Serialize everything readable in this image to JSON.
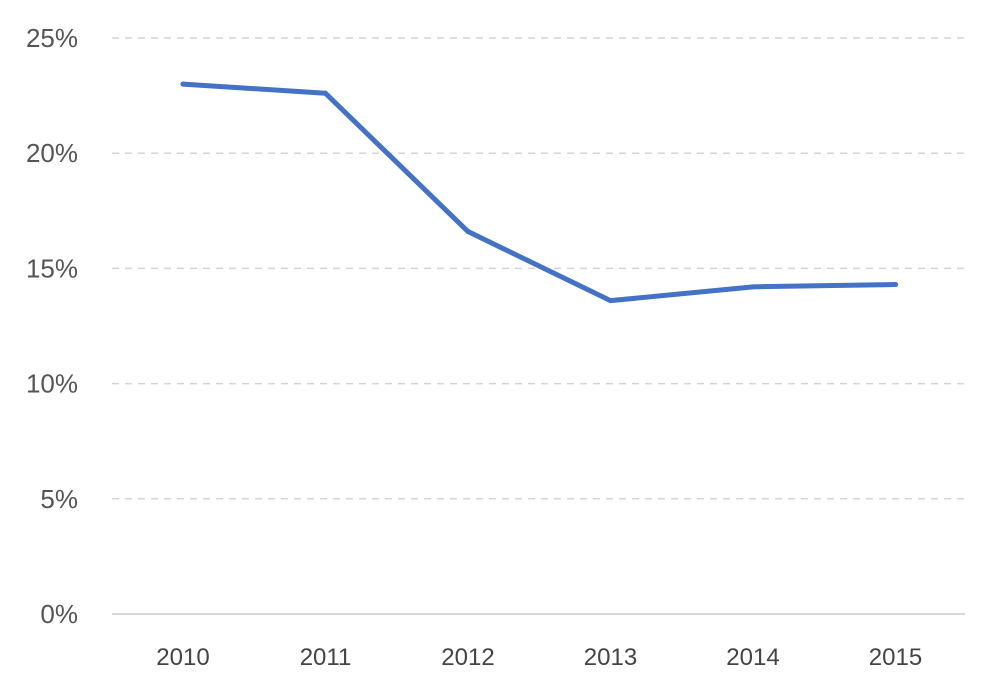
{
  "chart_data": {
    "type": "line",
    "title": "",
    "xlabel": "",
    "ylabel": "",
    "categories": [
      "2010",
      "2011",
      "2012",
      "2013",
      "2014",
      "2015"
    ],
    "series": [
      {
        "values": [
          23.0,
          22.6,
          16.6,
          13.6,
          14.2,
          14.3
        ],
        "color": "#4472C4"
      }
    ],
    "ylim": [
      0,
      25
    ],
    "yticks": [
      0,
      5,
      10,
      15,
      20,
      25
    ],
    "ytick_labels": [
      "0%",
      "5%",
      "10%",
      "15%",
      "20%",
      "25%"
    ],
    "grid": true,
    "grid_style": "dashed",
    "legend": "none"
  }
}
